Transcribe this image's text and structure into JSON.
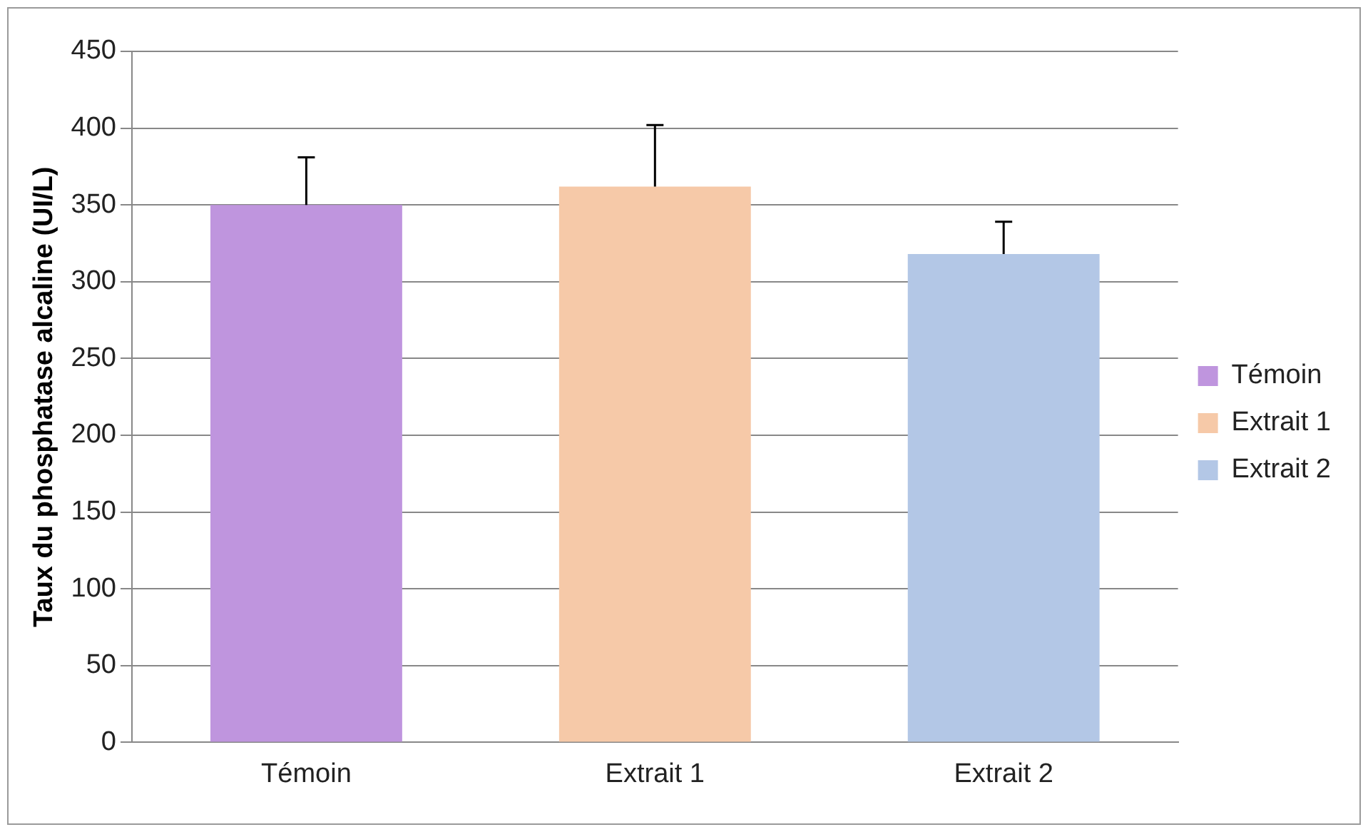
{
  "chart_data": {
    "type": "bar",
    "ylabel": "Taux du phosphatase alcaline (UI/L)",
    "categories": [
      "Témoin",
      "Extrait 1",
      "Extrait 2"
    ],
    "series": [
      {
        "name": "Témoin",
        "color": "#bf95de",
        "values": [
          350,
          null,
          null
        ],
        "errors": [
          [
            350,
            381
          ],
          null,
          null
        ]
      },
      {
        "name": "Extrait 1",
        "color": "#f6c9a8",
        "values": [
          null,
          362,
          null
        ],
        "errors": [
          null,
          [
            362,
            402
          ],
          null
        ]
      },
      {
        "name": "Extrait 2",
        "color": "#b3c7e6",
        "values": [
          null,
          null,
          318
        ],
        "errors": [
          null,
          null,
          [
            318,
            339
          ]
        ]
      }
    ],
    "ylim": [
      0,
      450
    ],
    "yticks": [
      0,
      50,
      100,
      150,
      200,
      250,
      300,
      350,
      400,
      450
    ],
    "grid": "y",
    "legend": "right"
  }
}
